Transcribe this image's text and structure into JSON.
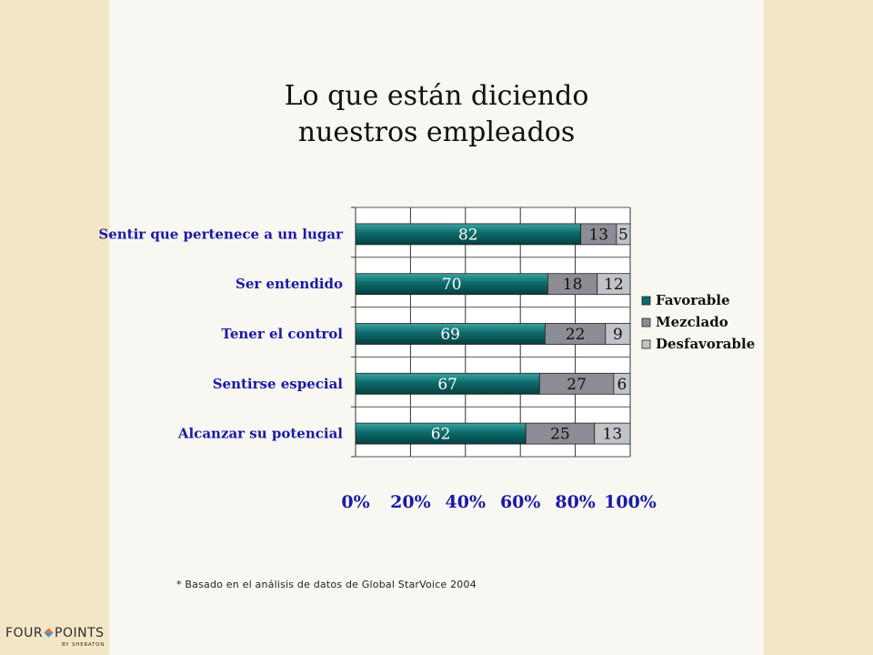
{
  "slide": {
    "title_line1": "Lo que están diciendo",
    "title_line2": "nuestros empleados",
    "footnote": "* Basado en el análisis de datos de Global StarVoice 2004"
  },
  "logo": {
    "name_left": "FOUR",
    "name_right": "POINTS",
    "sub": "BY SHERATON"
  },
  "colors": {
    "favorable": "#0e6b6b",
    "mezclado": "#8c8c94",
    "desfavorable": "#c2c3c9",
    "label_blue": "#1a1aa6",
    "slide_bg": "#f8f7f1",
    "frame_bg": "#f2e6c6"
  },
  "chart_data": {
    "type": "bar",
    "orientation": "horizontal",
    "stacked": true,
    "categories": [
      "Sentir que pertenece a un lugar",
      "Ser entendido",
      "Tener el control",
      "Sentirse especial",
      "Alcanzar su potencial"
    ],
    "series": [
      {
        "name": "Favorable",
        "values": [
          82,
          70,
          69,
          67,
          62
        ]
      },
      {
        "name": "Mezclado",
        "values": [
          13,
          18,
          22,
          27,
          25
        ]
      },
      {
        "name": "Desfavorable",
        "values": [
          5,
          12,
          9,
          6,
          13
        ]
      }
    ],
    "xticks": [
      "0%",
      "20%",
      "40%",
      "60%",
      "80%",
      "100%"
    ],
    "xlim": [
      0,
      100
    ],
    "grid": true,
    "legend_position": "right",
    "title": "",
    "xlabel": "",
    "ylabel": ""
  }
}
